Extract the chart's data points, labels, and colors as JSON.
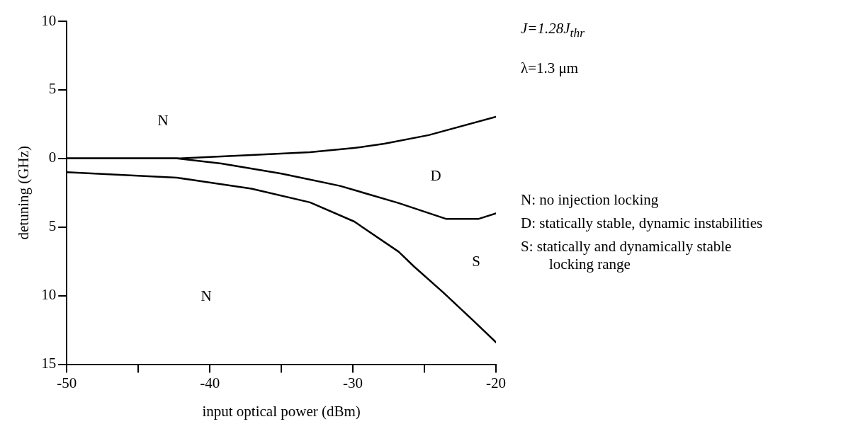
{
  "chart_data": {
    "type": "line",
    "xlabel": "input optical power (dBm)",
    "ylabel": "detuning (GHz)",
    "xlim": [
      -50,
      -20
    ],
    "xticks": [
      -50,
      {
        "value": -45,
        "label": null
      },
      -40,
      {
        "value": -35,
        "label": null
      },
      -30,
      {
        "value": -25,
        "label": null
      },
      -20
    ],
    "ylim": [
      -15,
      10
    ],
    "yticks": [
      {
        "value": -15,
        "label": "15"
      },
      {
        "value": -10,
        "label": "10"
      },
      {
        "value": -5,
        "label": "5"
      },
      0,
      5,
      10
    ],
    "marker": "none",
    "line_style": "solid",
    "legend": false,
    "series": [
      {
        "color": "#000000",
        "x": [
          -50,
          -45,
          -42.3,
          -37.1,
          -33,
          -29.9,
          -27.8,
          -24.7,
          -20
        ],
        "values": [
          0,
          0,
          0,
          0.25,
          0.45,
          0.76,
          1.07,
          1.7,
          3.04
        ]
      },
      {
        "color": "#000000",
        "x": [
          -50,
          -45,
          -42.3,
          -39.2,
          -35,
          -30.9,
          -26.8,
          -23.5,
          -21.2,
          -20
        ],
        "values": [
          0,
          0,
          0,
          -0.37,
          -1.1,
          -2.0,
          -3.25,
          -4.4,
          -4.4,
          -4.0
        ]
      },
      {
        "color": "#000000",
        "x": [
          -50,
          -42.3,
          -37.1,
          -33,
          -29.9,
          -26.8,
          -25.7,
          -23.7,
          -21.6,
          -20
        ],
        "values": [
          -1.0,
          -1.4,
          -2.2,
          -3.2,
          -4.6,
          -6.8,
          -7.9,
          -9.75,
          -11.8,
          -13.4
        ]
      }
    ],
    "annotations": [
      "N",
      "D",
      "S",
      "N",
      "J=1.28J$_{thr}$",
      "λ=1.3 μm",
      "N:  no injection locking",
      "D:  statically stable, dynamic instabilities",
      "S:  statically and dynamically stable locking range"
    ]
  }
}
